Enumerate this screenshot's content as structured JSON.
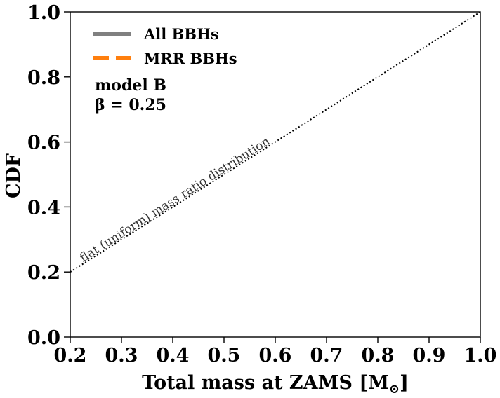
{
  "chart_data": {
    "type": "line",
    "xlabel": "Total mass at ZAMS [M",
    "xlabel_sub": "⊙",
    "xlabel_close": "]",
    "ylabel": "CDF",
    "xlim": [
      0.2,
      1.0
    ],
    "ylim": [
      0.0,
      1.0
    ],
    "xticks": [
      "0.2",
      "0.3",
      "0.4",
      "0.5",
      "0.6",
      "0.7",
      "0.8",
      "0.9",
      "1.0"
    ],
    "yticks": [
      "0.0",
      "0.2",
      "0.4",
      "0.6",
      "0.8",
      "1.0"
    ],
    "grid": false,
    "legend_position": "top-left",
    "series": [
      {
        "name": "All BBHs",
        "color": "#808080",
        "style": "solid",
        "x": [],
        "y": []
      },
      {
        "name": "MRR BBHs",
        "color": "#ff7f0e",
        "style": "dashed",
        "x": [],
        "y": []
      },
      {
        "name": "",
        "color": "#000000",
        "style": "dotted",
        "x": [
          0.2,
          1.0
        ],
        "y": [
          0.2,
          1.0
        ]
      }
    ],
    "annotations": {
      "model": "model B",
      "beta": "β = 0.25",
      "reference_label": "flat (uniform) mass ratio distribution"
    }
  }
}
